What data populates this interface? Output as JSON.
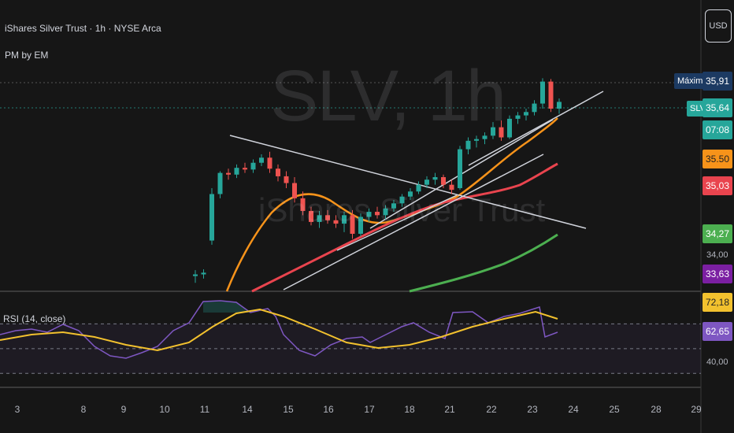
{
  "header": {
    "title": "iShares Silver Trust · 1h · NYSE Arca",
    "indicator": "PM by EM"
  },
  "watermark": {
    "symbol": "SLV, 1h",
    "name": "iShares Silver Trust"
  },
  "currency_button": "USD",
  "price_labels": {
    "max_tag": "Máximo",
    "max_value": "35,91",
    "symbol_tag": "SLV",
    "last_value": "35,64",
    "countdown": "07:08",
    "ma_orange": "35.50",
    "ma_red": "35,03",
    "ma_green": "34,27",
    "axis_34": "34,00",
    "purple": "33,63",
    "rsi_ma": "72,18",
    "rsi_value": "62,65",
    "rsi_axis_40": "40,00"
  },
  "rsi_label": "RSI (14, close)",
  "x_axis": [
    "3",
    "8",
    "9",
    "10",
    "11",
    "14",
    "15",
    "16",
    "17",
    "18",
    "21",
    "22",
    "23",
    "24",
    "25",
    "28",
    "29"
  ],
  "colors": {
    "up": "#26a69a",
    "down": "#ef5350",
    "ma_fast": "#f7931a",
    "ma_mid": "#e9444e",
    "ma_slow": "#4caf50",
    "rsi": "#7e57c2",
    "rsi_ma": "#f2c12e",
    "max_label": "#1c3a62",
    "purple_label": "#7b1fa2"
  },
  "chart_data": {
    "type": "candlestick",
    "title": "SLV, 1h",
    "ylim": [
      33.4,
      36.1
    ],
    "price_ohlc": [
      [
        33.58,
        33.65,
        33.5,
        33.6
      ],
      [
        33.6,
        33.66,
        33.55,
        33.62
      ],
      [
        34.0,
        34.62,
        33.95,
        34.55
      ],
      [
        34.55,
        34.82,
        34.5,
        34.8
      ],
      [
        34.8,
        34.85,
        34.72,
        34.78
      ],
      [
        34.78,
        34.9,
        34.74,
        34.86
      ],
      [
        34.86,
        34.92,
        34.8,
        34.84
      ],
      [
        34.84,
        34.96,
        34.8,
        34.92
      ],
      [
        34.92,
        35.02,
        34.88,
        34.98
      ],
      [
        34.98,
        35.05,
        34.8,
        34.85
      ],
      [
        34.85,
        34.9,
        34.7,
        34.76
      ],
      [
        34.76,
        34.82,
        34.62,
        34.68
      ],
      [
        34.68,
        34.75,
        34.45,
        34.5
      ],
      [
        34.5,
        34.58,
        34.3,
        34.35
      ],
      [
        34.35,
        34.4,
        34.18,
        34.22
      ],
      [
        34.22,
        34.35,
        34.15,
        34.3
      ],
      [
        34.3,
        34.36,
        34.2,
        34.24
      ],
      [
        34.24,
        34.3,
        34.15,
        34.2
      ],
      [
        34.2,
        34.34,
        34.1,
        34.3
      ],
      [
        34.3,
        34.36,
        34.02,
        34.08
      ],
      [
        34.08,
        34.32,
        34.05,
        34.28
      ],
      [
        34.28,
        34.38,
        34.22,
        34.34
      ],
      [
        34.34,
        34.4,
        34.26,
        34.3
      ],
      [
        34.3,
        34.42,
        34.25,
        34.38
      ],
      [
        34.38,
        34.48,
        34.34,
        34.44
      ],
      [
        34.44,
        34.55,
        34.4,
        34.52
      ],
      [
        34.52,
        34.62,
        34.48,
        34.58
      ],
      [
        34.58,
        34.7,
        34.55,
        34.66
      ],
      [
        34.66,
        34.76,
        34.62,
        34.72
      ],
      [
        34.72,
        34.8,
        34.66,
        34.75
      ],
      [
        34.75,
        34.78,
        34.62,
        34.66
      ],
      [
        34.66,
        34.72,
        34.55,
        34.6
      ],
      [
        34.62,
        35.12,
        34.6,
        35.08
      ],
      [
        35.08,
        35.22,
        35.02,
        35.18
      ],
      [
        35.18,
        35.24,
        35.1,
        35.2
      ],
      [
        35.2,
        35.28,
        35.14,
        35.24
      ],
      [
        35.24,
        35.4,
        35.2,
        35.34
      ],
      [
        35.34,
        35.42,
        35.18,
        35.22
      ],
      [
        35.22,
        35.48,
        35.2,
        35.44
      ],
      [
        35.44,
        35.52,
        35.38,
        35.48
      ],
      [
        35.48,
        35.56,
        35.42,
        35.52
      ],
      [
        35.52,
        35.66,
        35.48,
        35.62
      ],
      [
        35.62,
        35.92,
        35.56,
        35.88
      ],
      [
        35.88,
        35.91,
        35.52,
        35.56
      ],
      [
        35.56,
        35.68,
        35.5,
        35.64
      ]
    ],
    "rsi_range": [
      20,
      90
    ],
    "rsi_levels": [
      70,
      50,
      30
    ]
  }
}
